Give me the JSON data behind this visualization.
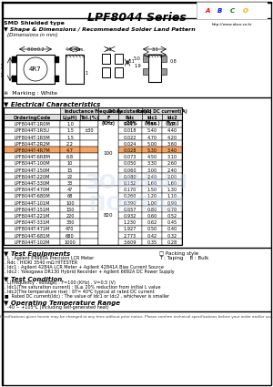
{
  "title": "LPF8044 Series",
  "website": "http://www.abco.co.kr",
  "subtitle1": "SMD Shielded type",
  "section1": "▼ Shape & Dimensions / Recommended Solder Land Pattern",
  "dim_note": "(Dimensions in mm)",
  "marking": "※  Marking : White",
  "section2": "▼ Electrical Characteristics",
  "rows": [
    [
      "LPF8044T-1R0M",
      "1.0",
      "",
      "0.015",
      "6.50",
      "5.10"
    ],
    [
      "LPF8044T-1R5U",
      "1.5",
      "±30",
      "0.018",
      "5.40",
      "4.40"
    ],
    [
      "LPF8044T-1R5M",
      "1.5",
      "",
      "0.022",
      "4.70",
      "4.20"
    ],
    [
      "LPF8044T-2R2M",
      "2.2",
      "",
      "0.024",
      "5.00",
      "3.60"
    ],
    [
      "LPF8044T-4R7M",
      "4.7",
      "",
      "0.028",
      "5.30",
      "3.40"
    ],
    [
      "LPF8044T-6R8M",
      "6.8",
      "",
      "0.073",
      "4.50",
      "3.10"
    ],
    [
      "LPF8044T-100M",
      "10",
      "",
      "0.050",
      "3.30",
      "2.60"
    ],
    [
      "LPF8044T-150M",
      "15",
      "",
      "0.060",
      "3.00",
      "2.40"
    ],
    [
      "LPF8044T-220M",
      "22",
      "",
      "0.080",
      "2.40",
      "2.00"
    ],
    [
      "LPF8044T-330M",
      "33",
      "",
      "0.132",
      "1.60",
      "1.60"
    ],
    [
      "LPF8044T-470M",
      "47",
      "",
      "0.170",
      "1.50",
      "1.30"
    ],
    [
      "LPF8044T-680M",
      "68",
      "",
      "0.260",
      "1.20",
      "1.10"
    ],
    [
      "LPF8044T-101M",
      "100",
      "",
      "0.390",
      "1.00",
      "0.90"
    ],
    [
      "LPF8044T-151M",
      "150",
      "",
      "0.657",
      "0.80",
      "0.70"
    ],
    [
      "LPF8044T-221M",
      "220",
      "",
      "0.932",
      "0.60",
      "0.52"
    ],
    [
      "LPF8044T-331M",
      "330",
      "",
      "1.230",
      "0.62",
      "0.45"
    ],
    [
      "LPF8044T-471M",
      "470",
      "",
      "1.927",
      "0.50",
      "0.40"
    ],
    [
      "LPF8044T-681M",
      "680",
      "",
      "2.773",
      "0.42",
      "0.32"
    ],
    [
      "LPF8044T-102M",
      "1000",
      "",
      "3.609",
      "0.35",
      "0.28"
    ]
  ],
  "highlight_row": 4,
  "freq_spans": [
    [
      0,
      10,
      "100"
    ],
    [
      10,
      9,
      "820"
    ]
  ],
  "section3": "▼ Test Equipments",
  "test_eq": [
    ". L : Agilent E4980A Precision LCR Meter",
    ". Rdc : HIOKI 3540 mΩ HITESTER",
    ". Idc1 : Agilent 4284A LCR Meter + Agilent 42841A Bias Current Source",
    ". Idc2 : Yokogawa DR130 Hybrid Recorder + Agilent 6692A DC Power Supply"
  ],
  "packing": "□ Packing style",
  "packing2": "T : Taping    B : Bulk",
  "section4": "▼ Test Condition",
  "test_cond": [
    ". L(Frequency , Voltage) : F=100 (KHz) , V=0.5 (V)",
    ". Idc1(The saturation current) : δL≥ 20% reduction from initial L value",
    ". Idc2(The temperature rise) : δT= 40℃ typical at rated DC current",
    "■  Rated DC current(Idc) : The value of Idc1 or Idc2 , whichever is smaller"
  ],
  "section5": "▼ Operating Temperature Range",
  "op_temp": "  -40 ~ +105℃ (Including self-generated heat)",
  "footer": "Specifications given herein may be changed at any time without prior notice. Please confirm technical specifications before your order and/or use.",
  "bg_color": "#ffffff",
  "header_bg": "#e0e0e0",
  "highlight_color": "#f4a460",
  "watermark_color": "#c8d8f0"
}
